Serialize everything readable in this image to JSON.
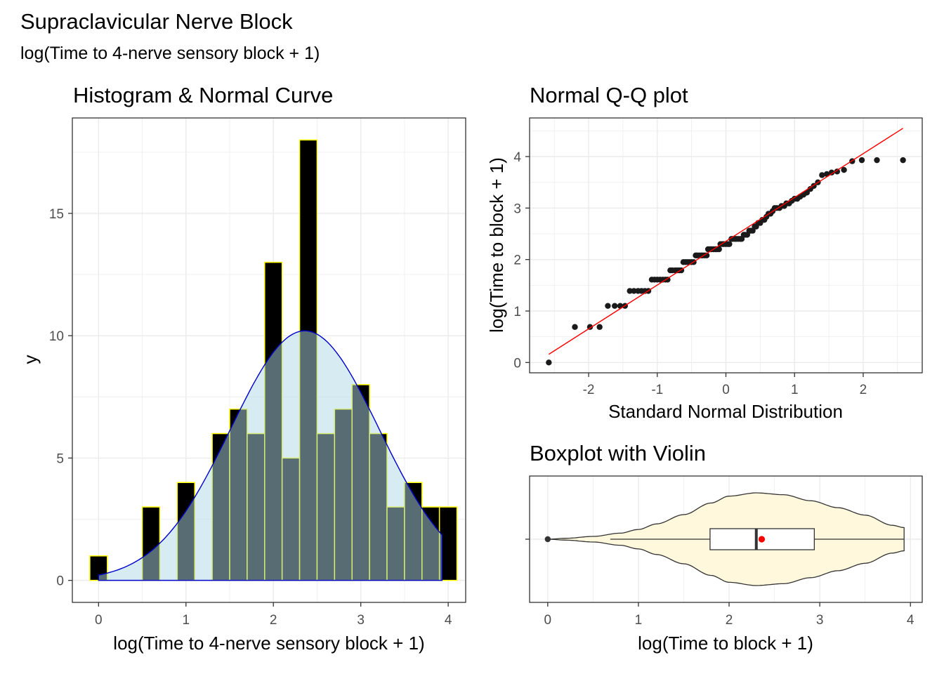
{
  "title": "Supraclavicular Nerve Block",
  "subtitle": "log(Time to 4-nerve sensory block + 1)",
  "colors": {
    "hist_bar_fill": "#000000",
    "hist_bar_outline": "#ffff00",
    "normal_curve_fill": "#add8e6",
    "normal_curve_line": "#0000cd",
    "qq_points": "#1a1a1a",
    "qq_line": "#ff0000",
    "violin_fill": "#fff8dc",
    "box_fill": "#ffffff",
    "mean_point": "#ff0000",
    "grid": "#ebebeb",
    "panel_border": "#333333"
  },
  "chart_data": [
    {
      "type": "bar",
      "title": "Histogram & Normal Curve",
      "xlabel": "log(Time to 4-nerve sensory block + 1)",
      "ylabel": "y",
      "bin_width": 0.2,
      "bin_centers": [
        0.0,
        0.6,
        1.0,
        1.4,
        1.6,
        1.8,
        2.0,
        2.2,
        2.4,
        2.6,
        2.8,
        3.0,
        3.2,
        3.4,
        3.6,
        3.8,
        4.0
      ],
      "values": [
        1,
        3,
        4,
        6,
        7,
        6,
        13,
        5,
        18,
        6,
        7,
        8,
        6,
        3,
        4,
        3,
        3
      ],
      "normal_curve": {
        "mean": 2.36,
        "peak": 10.2,
        "sd": 0.85,
        "x_range": [
          0,
          3.93
        ]
      },
      "xlim": [
        -0.3,
        4.2
      ],
      "ylim": [
        -0.9,
        18.9
      ],
      "x_ticks": [
        "0",
        "1",
        "2",
        "3",
        "4"
      ],
      "x_tick_values": [
        0,
        1,
        2,
        3,
        4
      ],
      "y_ticks": [
        "0",
        "5",
        "10",
        "15"
      ],
      "y_tick_values": [
        0,
        5,
        10,
        15
      ],
      "grid": true
    },
    {
      "type": "scatter",
      "title": "Normal Q-Q plot",
      "xlabel": "Standard Normal Distribution",
      "ylabel": "log(Time to block + 1)",
      "points": [
        [
          -2.58,
          0.0
        ],
        [
          -2.2,
          0.69
        ],
        [
          -1.98,
          0.69
        ],
        [
          -1.84,
          0.69
        ],
        [
          -1.72,
          1.1
        ],
        [
          -1.62,
          1.1
        ],
        [
          -1.54,
          1.1
        ],
        [
          -1.47,
          1.1
        ],
        [
          -1.4,
          1.39
        ],
        [
          -1.34,
          1.39
        ],
        [
          -1.28,
          1.39
        ],
        [
          -1.23,
          1.39
        ],
        [
          -1.18,
          1.39
        ],
        [
          -1.13,
          1.39
        ],
        [
          -1.08,
          1.61
        ],
        [
          -1.04,
          1.61
        ],
        [
          -1.0,
          1.61
        ],
        [
          -0.96,
          1.61
        ],
        [
          -0.92,
          1.61
        ],
        [
          -0.88,
          1.61
        ],
        [
          -0.85,
          1.61
        ],
        [
          -0.81,
          1.79
        ],
        [
          -0.78,
          1.79
        ],
        [
          -0.74,
          1.79
        ],
        [
          -0.71,
          1.79
        ],
        [
          -0.68,
          1.79
        ],
        [
          -0.65,
          1.79
        ],
        [
          -0.62,
          1.95
        ],
        [
          -0.59,
          1.95
        ],
        [
          -0.56,
          1.95
        ],
        [
          -0.53,
          1.95
        ],
        [
          -0.5,
          1.95
        ],
        [
          -0.47,
          1.95
        ],
        [
          -0.44,
          2.08
        ],
        [
          -0.42,
          2.08
        ],
        [
          -0.39,
          2.08
        ],
        [
          -0.36,
          2.08
        ],
        [
          -0.34,
          2.08
        ],
        [
          -0.31,
          2.08
        ],
        [
          -0.28,
          2.08
        ],
        [
          -0.26,
          2.2
        ],
        [
          -0.23,
          2.2
        ],
        [
          -0.21,
          2.2
        ],
        [
          -0.18,
          2.2
        ],
        [
          -0.15,
          2.2
        ],
        [
          -0.13,
          2.2
        ],
        [
          -0.1,
          2.2
        ],
        [
          -0.08,
          2.3
        ],
        [
          -0.05,
          2.3
        ],
        [
          -0.03,
          2.3
        ],
        [
          0.0,
          2.3
        ],
        [
          0.03,
          2.3
        ],
        [
          0.05,
          2.3
        ],
        [
          0.08,
          2.4
        ],
        [
          0.1,
          2.4
        ],
        [
          0.13,
          2.4
        ],
        [
          0.15,
          2.4
        ],
        [
          0.18,
          2.4
        ],
        [
          0.21,
          2.4
        ],
        [
          0.23,
          2.4
        ],
        [
          0.26,
          2.48
        ],
        [
          0.28,
          2.48
        ],
        [
          0.31,
          2.48
        ],
        [
          0.34,
          2.56
        ],
        [
          0.36,
          2.56
        ],
        [
          0.39,
          2.56
        ],
        [
          0.42,
          2.64
        ],
        [
          0.44,
          2.64
        ],
        [
          0.47,
          2.71
        ],
        [
          0.5,
          2.71
        ],
        [
          0.53,
          2.77
        ],
        [
          0.56,
          2.77
        ],
        [
          0.59,
          2.83
        ],
        [
          0.62,
          2.89
        ],
        [
          0.65,
          2.89
        ],
        [
          0.68,
          2.94
        ],
        [
          0.71,
          3.0
        ],
        [
          0.74,
          3.0
        ],
        [
          0.78,
          3.0
        ],
        [
          0.81,
          3.04
        ],
        [
          0.85,
          3.04
        ],
        [
          0.88,
          3.09
        ],
        [
          0.92,
          3.09
        ],
        [
          0.96,
          3.14
        ],
        [
          1.0,
          3.18
        ],
        [
          1.04,
          3.18
        ],
        [
          1.08,
          3.22
        ],
        [
          1.13,
          3.26
        ],
        [
          1.18,
          3.3
        ],
        [
          1.23,
          3.37
        ],
        [
          1.28,
          3.43
        ],
        [
          1.34,
          3.5
        ],
        [
          1.4,
          3.64
        ],
        [
          1.47,
          3.66
        ],
        [
          1.54,
          3.69
        ],
        [
          1.62,
          3.71
        ],
        [
          1.72,
          3.74
        ],
        [
          1.84,
          3.91
        ],
        [
          1.98,
          3.93
        ],
        [
          2.2,
          3.93
        ],
        [
          2.58,
          3.93
        ]
      ],
      "reference_line": {
        "x": [
          -2.58,
          2.58
        ],
        "y": [
          0.16,
          4.55
        ]
      },
      "xlim": [
        -2.86,
        2.86
      ],
      "ylim": [
        -0.2,
        4.75
      ],
      "x_ticks": [
        "-2",
        "-1",
        "0",
        "1",
        "2"
      ],
      "x_tick_values": [
        -2,
        -1,
        0,
        1,
        2
      ],
      "y_ticks": [
        "0",
        "1",
        "2",
        "3",
        "4"
      ],
      "y_tick_values": [
        0,
        1,
        2,
        3,
        4
      ],
      "grid": true
    },
    {
      "type": "boxplot",
      "title": "Boxplot with Violin",
      "xlabel": "log(Time to block + 1)",
      "min": 0.0,
      "lower_whisker": 0.69,
      "q1": 1.79,
      "median": 2.3,
      "q3": 2.94,
      "upper_whisker": 3.93,
      "mean": 2.36,
      "outliers": [
        0.0
      ],
      "violin_width_profile": [
        [
          0.0,
          0.0
        ],
        [
          0.2,
          0.02
        ],
        [
          0.5,
          0.06
        ],
        [
          0.8,
          0.13
        ],
        [
          1.0,
          0.21
        ],
        [
          1.2,
          0.33
        ],
        [
          1.5,
          0.53
        ],
        [
          1.8,
          0.78
        ],
        [
          2.0,
          0.93
        ],
        [
          2.3,
          1.0
        ],
        [
          2.6,
          0.96
        ],
        [
          2.9,
          0.83
        ],
        [
          3.2,
          0.68
        ],
        [
          3.5,
          0.52
        ],
        [
          3.8,
          0.3
        ],
        [
          3.93,
          0.25
        ]
      ],
      "xlim": [
        -0.2,
        4.13
      ],
      "x_ticks": [
        "0",
        "1",
        "2",
        "3",
        "4"
      ],
      "x_tick_values": [
        0,
        1,
        2,
        3,
        4
      ],
      "grid": true
    }
  ]
}
